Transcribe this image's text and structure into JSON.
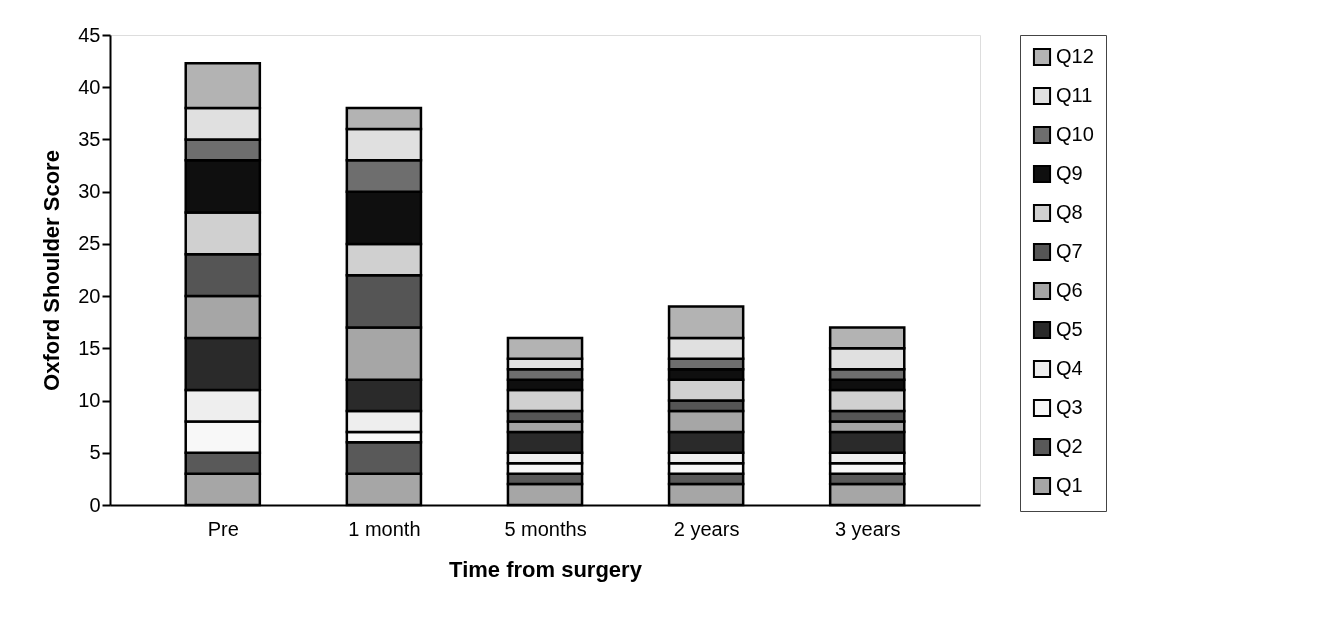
{
  "chart_data": {
    "type": "bar",
    "stacked": true,
    "xlabel": "Time from surgery",
    "ylabel": "Oxford Shoulder Score",
    "categories": [
      "Pre",
      "1 month",
      "5 months",
      "2 years",
      "3 years"
    ],
    "series": [
      {
        "name": "Q1",
        "color": "#a6a6a6",
        "values": [
          3,
          3,
          2,
          2,
          2
        ]
      },
      {
        "name": "Q2",
        "color": "#595959",
        "values": [
          2,
          3,
          1,
          1,
          1
        ]
      },
      {
        "name": "Q3",
        "color": "#f8f8f8",
        "values": [
          3,
          1,
          1,
          1,
          1
        ]
      },
      {
        "name": "Q4",
        "color": "#eeeeee",
        "values": [
          3,
          2,
          1,
          1,
          1
        ]
      },
      {
        "name": "Q5",
        "color": "#2a2a2a",
        "values": [
          5,
          3,
          2,
          2,
          2
        ]
      },
      {
        "name": "Q6",
        "color": "#a6a6a6",
        "values": [
          4,
          5,
          1,
          2,
          1
        ]
      },
      {
        "name": "Q7",
        "color": "#555555",
        "values": [
          4,
          5,
          1,
          1,
          1
        ]
      },
      {
        "name": "Q8",
        "color": "#d0d0d0",
        "values": [
          4,
          3,
          2,
          2,
          2
        ]
      },
      {
        "name": "Q9",
        "color": "#0f0f0f",
        "values": [
          5,
          5,
          1,
          1,
          1
        ]
      },
      {
        "name": "Q10",
        "color": "#6e6e6e",
        "values": [
          2,
          3,
          1,
          1,
          1
        ]
      },
      {
        "name": "Q11",
        "color": "#e0e0e0",
        "values": [
          3,
          3,
          1,
          2,
          2
        ]
      },
      {
        "name": "Q12",
        "color": "#b3b3b3",
        "values": [
          4.3,
          2,
          2,
          3,
          2
        ]
      }
    ],
    "ylim": [
      0,
      45
    ],
    "yticks": [
      0,
      5,
      10,
      15,
      20,
      25,
      30,
      35,
      40,
      45
    ],
    "grid": false,
    "legend": "right"
  }
}
